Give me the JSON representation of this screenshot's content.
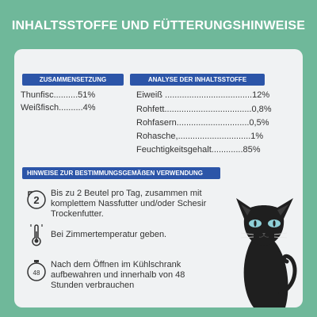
{
  "title": "INHALTSSTOFFE UND FÜTTERUNGSHINWEISE",
  "composition": {
    "header": "ZUSAMMENSETZUNG",
    "items": [
      "Thunfisc..........51%",
      "Weißfisch..........4%"
    ]
  },
  "analysis": {
    "header": "ANALYSE DER INHALTSSTOFFE",
    "items": [
      "Eiweiß ....................................12%",
      "Rohfett....................................0,8%",
      "Rohfasern..............................0,5%",
      "Rohasche,..............................1%",
      "Feuchtigkeitsgehalt.............85%"
    ]
  },
  "hints": {
    "header": "HINWEISE ZUR BESTIMMUNGSGEMÄẞEN VERWENDUNG",
    "items": [
      {
        "icon": "two-bags-icon",
        "text": "Bis zu 2 Beutel pro Tag, zusammen mit komplettem Nassfutter und/oder Schesir Trockenfutter."
      },
      {
        "icon": "thermometer-icon",
        "text": "Bei Zimmertemperatur geben."
      },
      {
        "icon": "timer-48-icon",
        "text": "Nach dem Öffnen im Kühlschrank aufbewahren und innerhalb von 48 Stunden verbrauchen"
      }
    ]
  },
  "icon_labels": {
    "bags_count": "2",
    "timer_label": "48"
  },
  "colors": {
    "background": "#6fb89a",
    "card": "#f0f2f3",
    "accent": "#2c55a8",
    "cat_eye": "#8fd0d8"
  }
}
